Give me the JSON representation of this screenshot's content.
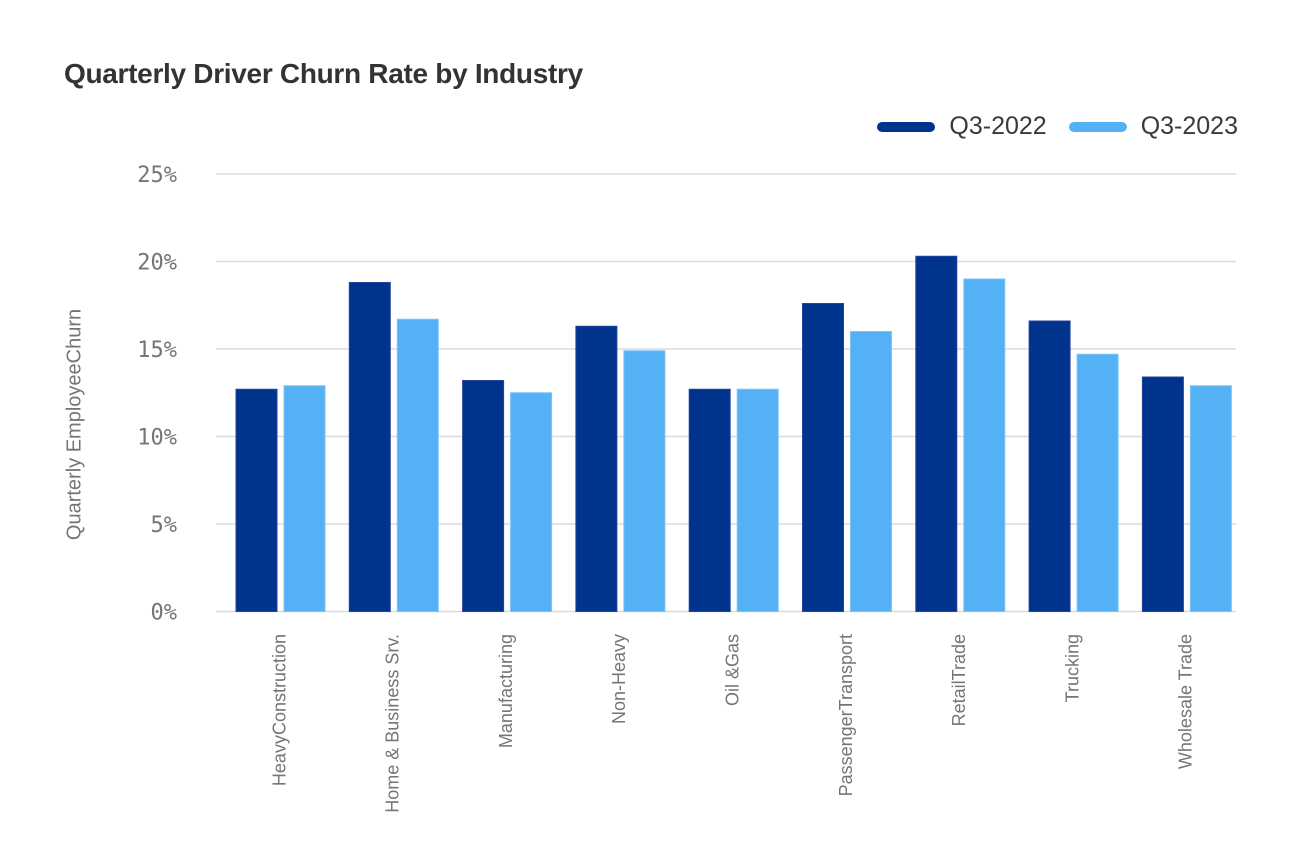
{
  "chart_data": {
    "type": "bar",
    "title": "Quarterly Driver Churn Rate by Industry",
    "xlabel": "",
    "ylabel": "Quarterly EmployeeChurn",
    "ylim": [
      0,
      25
    ],
    "ytick_values": [
      0,
      5,
      10,
      15,
      20,
      25
    ],
    "ytick_labels": [
      "0%",
      "5%",
      "10%",
      "15%",
      "20%",
      "25%"
    ],
    "grid": true,
    "legend_position": "top-right",
    "categories": [
      "HeavyConstruction",
      "Home & Business Srv.",
      "Manufacturing",
      "Non-Heavy",
      "Oil &Gas",
      "PassengerTransport",
      "RetailTrade",
      "Trucking",
      "Wholesale Trade"
    ],
    "series": [
      {
        "name": "Q3-2022",
        "color": "#00338C",
        "edge_color": "#24449B",
        "values": [
          12.7,
          18.8,
          13.2,
          16.3,
          12.7,
          17.6,
          20.3,
          16.6,
          13.4
        ]
      },
      {
        "name": "Q3-2023",
        "color": "#55B1F5",
        "edge_color": "#7CC4F8",
        "values": [
          12.9,
          16.7,
          12.5,
          14.9,
          12.7,
          16.0,
          19.0,
          14.7,
          12.9
        ]
      }
    ],
    "colors": {
      "grid": "#DBDBDB",
      "axis_text": "#757575",
      "title_text": "#333333",
      "legend_text": "#3A3A3A",
      "background": "#FFFFFF"
    }
  }
}
